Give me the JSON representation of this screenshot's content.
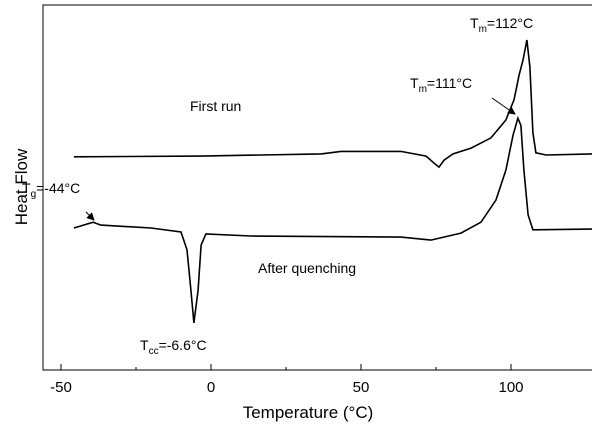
{
  "chart_data": {
    "type": "line",
    "xlabel": "Temperature (°C)",
    "ylabel": "Heat Flow",
    "xlim": [
      -56,
      127
    ],
    "xticks": [
      -50,
      0,
      50,
      100
    ],
    "xminorticks": [
      -25,
      25,
      75
    ],
    "ylim": [
      0,
      100
    ],
    "series": [
      {
        "name": "First run",
        "color": "#000000",
        "x": [
          -45.7,
          -3.3,
          36.7,
          43.3,
          63.3,
          71.7,
          74.3,
          76,
          77.7,
          80.7,
          86.7,
          93.3,
          98.3,
          101,
          102.7,
          104,
          105.3,
          106.3,
          107.3,
          108.3,
          111.7,
          127
        ],
        "values": [
          58.4,
          58.6,
          59.2,
          59.9,
          59.9,
          58.6,
          56.7,
          55.6,
          57.5,
          59.2,
          60.8,
          63.6,
          68.5,
          74,
          80.8,
          84.9,
          90.4,
          83,
          65,
          59.5,
          58.9,
          59.2
        ]
      },
      {
        "name": "After quenching",
        "color": "#000000",
        "x": [
          -45.7,
          -39.3,
          -36.7,
          -20,
          -10,
          -8,
          -6.7,
          -5.7,
          -4.3,
          -3.3,
          -1.7,
          13.3,
          63.3,
          73.3,
          83.3,
          90,
          95,
          98.3,
          100.7,
          102.3,
          103.3,
          104.3,
          105.7,
          107.3,
          127
        ],
        "values": [
          38.9,
          40.5,
          39.7,
          38.9,
          37.8,
          32.9,
          21.9,
          12.9,
          21.9,
          34.2,
          37.3,
          36.7,
          36.4,
          35.6,
          37.5,
          40.5,
          46.6,
          54.8,
          64.4,
          69,
          67,
          54.8,
          42.5,
          38.4,
          38.6
        ]
      }
    ],
    "annotations": [
      {
        "base": "T",
        "sub": "m",
        "rest": "=112°C"
      },
      {
        "base": "T",
        "sub": "m",
        "rest": "=111°C"
      },
      {
        "base": "T",
        "sub": "g",
        "rest": "=-44°C"
      },
      {
        "base": "T",
        "sub": "cc",
        "rest": "=-6.6°C"
      }
    ]
  }
}
